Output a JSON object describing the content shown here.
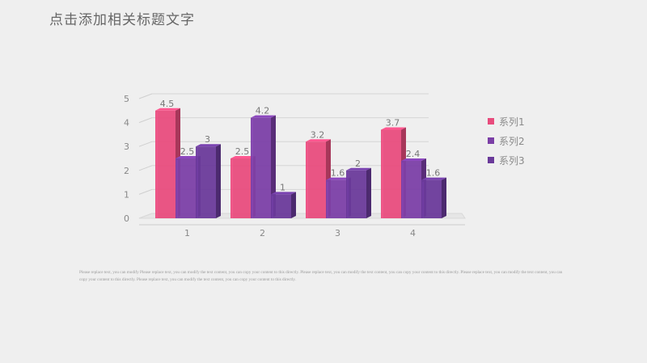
{
  "slide": {
    "title": "点击添加相关标题文字",
    "body_text": "Please replace text, you can modify Please replace text, you can modify the text content, you can copy your content to this directly. Please replace text, you can modify the text content, you can copy your content to this directly. Please replace text, you can modify the text content, you can copy your content to this directly. Please replace text, you can modify the text content, you can copy your content to this directly."
  },
  "colors": {
    "series1": "#e84c7d",
    "series2": "#7b3fa6",
    "series3": "#6a3a9a",
    "axis": "#cccccc",
    "text": "#888888"
  },
  "chart_data": {
    "type": "bar",
    "categories": [
      "1",
      "2",
      "3",
      "4"
    ],
    "series": [
      {
        "name": "系列1",
        "values": [
          4.5,
          2.5,
          3.2,
          3.7
        ]
      },
      {
        "name": "系列2",
        "values": [
          2.5,
          4.2,
          1.6,
          2.4
        ]
      },
      {
        "name": "系列3",
        "values": [
          3,
          1,
          2,
          1.6
        ]
      }
    ],
    "ylim": [
      0,
      5
    ],
    "yticks": [
      0,
      1,
      2,
      3,
      4,
      5
    ],
    "legend_position": "right",
    "grid": true,
    "style": "3d-clustered"
  }
}
